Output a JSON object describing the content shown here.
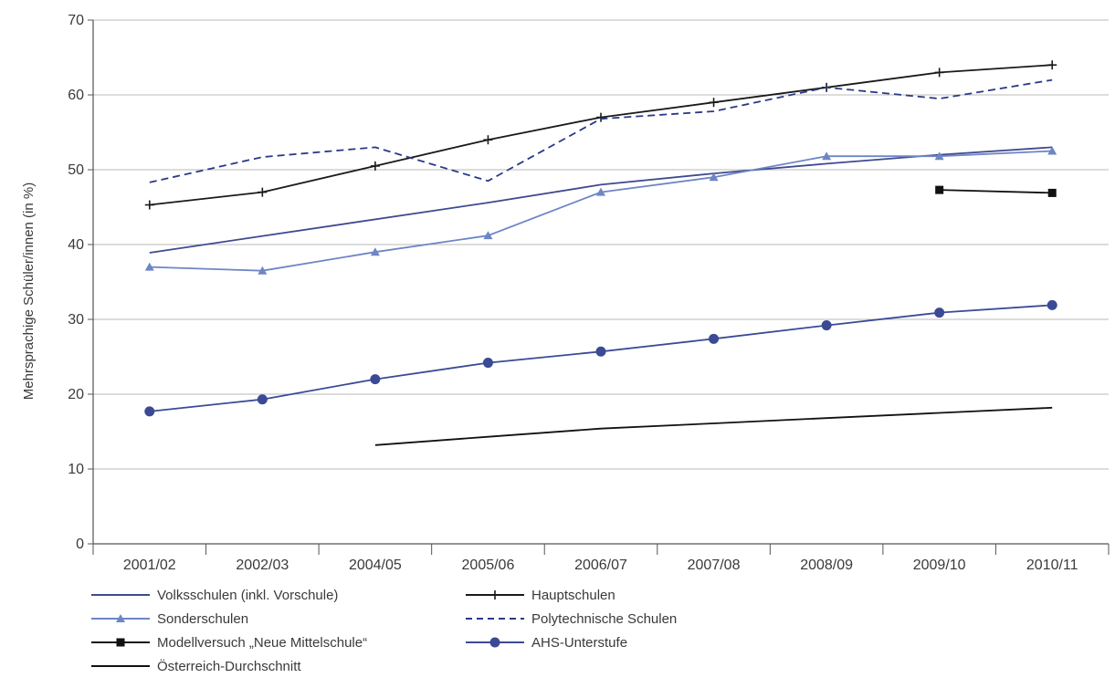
{
  "chart_data": {
    "type": "line",
    "title": "",
    "xlabel": "",
    "ylabel": "Mehrsprachige Schüler/innen (in %)",
    "ylim": [
      0,
      70
    ],
    "yticks": [
      0,
      10,
      20,
      30,
      40,
      50,
      60,
      70
    ],
    "grid": "horizontal",
    "legend_position": "bottom",
    "categories": [
      "2001/02",
      "2002/03",
      "2004/05",
      "2005/06",
      "2006/07",
      "2007/08",
      "2008/09",
      "2009/10",
      "2010/11"
    ],
    "series": [
      {
        "name": "Volksschulen (inkl. Vorschule)",
        "values": [
          38.9,
          null,
          null,
          45.6,
          48.0,
          49.5,
          50.8,
          52.0,
          53.0
        ],
        "color": "#3f4a8f",
        "dash": "solid",
        "marker": "none"
      },
      {
        "name": "Hauptschulen",
        "values": [
          45.3,
          47.0,
          50.5,
          54.0,
          57.0,
          59.0,
          61.0,
          63.0,
          64.0
        ],
        "color": "#1a1a1a",
        "dash": "solid",
        "marker": "plus"
      },
      {
        "name": "Sonderschulen",
        "values": [
          37.0,
          36.5,
          39.0,
          41.2,
          47.0,
          49.0,
          51.8,
          51.8,
          52.5
        ],
        "color": "#6d86c4",
        "dash": "solid",
        "marker": "triangle"
      },
      {
        "name": "Polytechnische Schulen",
        "values": [
          48.3,
          51.7,
          53.0,
          48.5,
          56.8,
          57.8,
          61.0,
          59.5,
          62.0
        ],
        "color": "#2a3a86",
        "dash": "dashed",
        "marker": "none"
      },
      {
        "name": "Modellversuch „Neue Mittelschule“",
        "values": [
          null,
          null,
          null,
          null,
          null,
          null,
          null,
          47.3,
          46.9
        ],
        "color": "#111111",
        "dash": "solid",
        "marker": "square"
      },
      {
        "name": "AHS-Unterstufe",
        "values": [
          17.7,
          19.3,
          22.0,
          24.2,
          25.7,
          27.4,
          29.2,
          30.9,
          31.9
        ],
        "color": "#3b4a95",
        "dash": "solid",
        "marker": "circle"
      },
      {
        "name": "Österreich-Durchschnitt",
        "values": [
          null,
          null,
          13.2,
          14.3,
          15.4,
          16.1,
          16.8,
          17.5,
          18.2
        ],
        "color": "#111111",
        "dash": "solid",
        "marker": "none"
      }
    ]
  }
}
